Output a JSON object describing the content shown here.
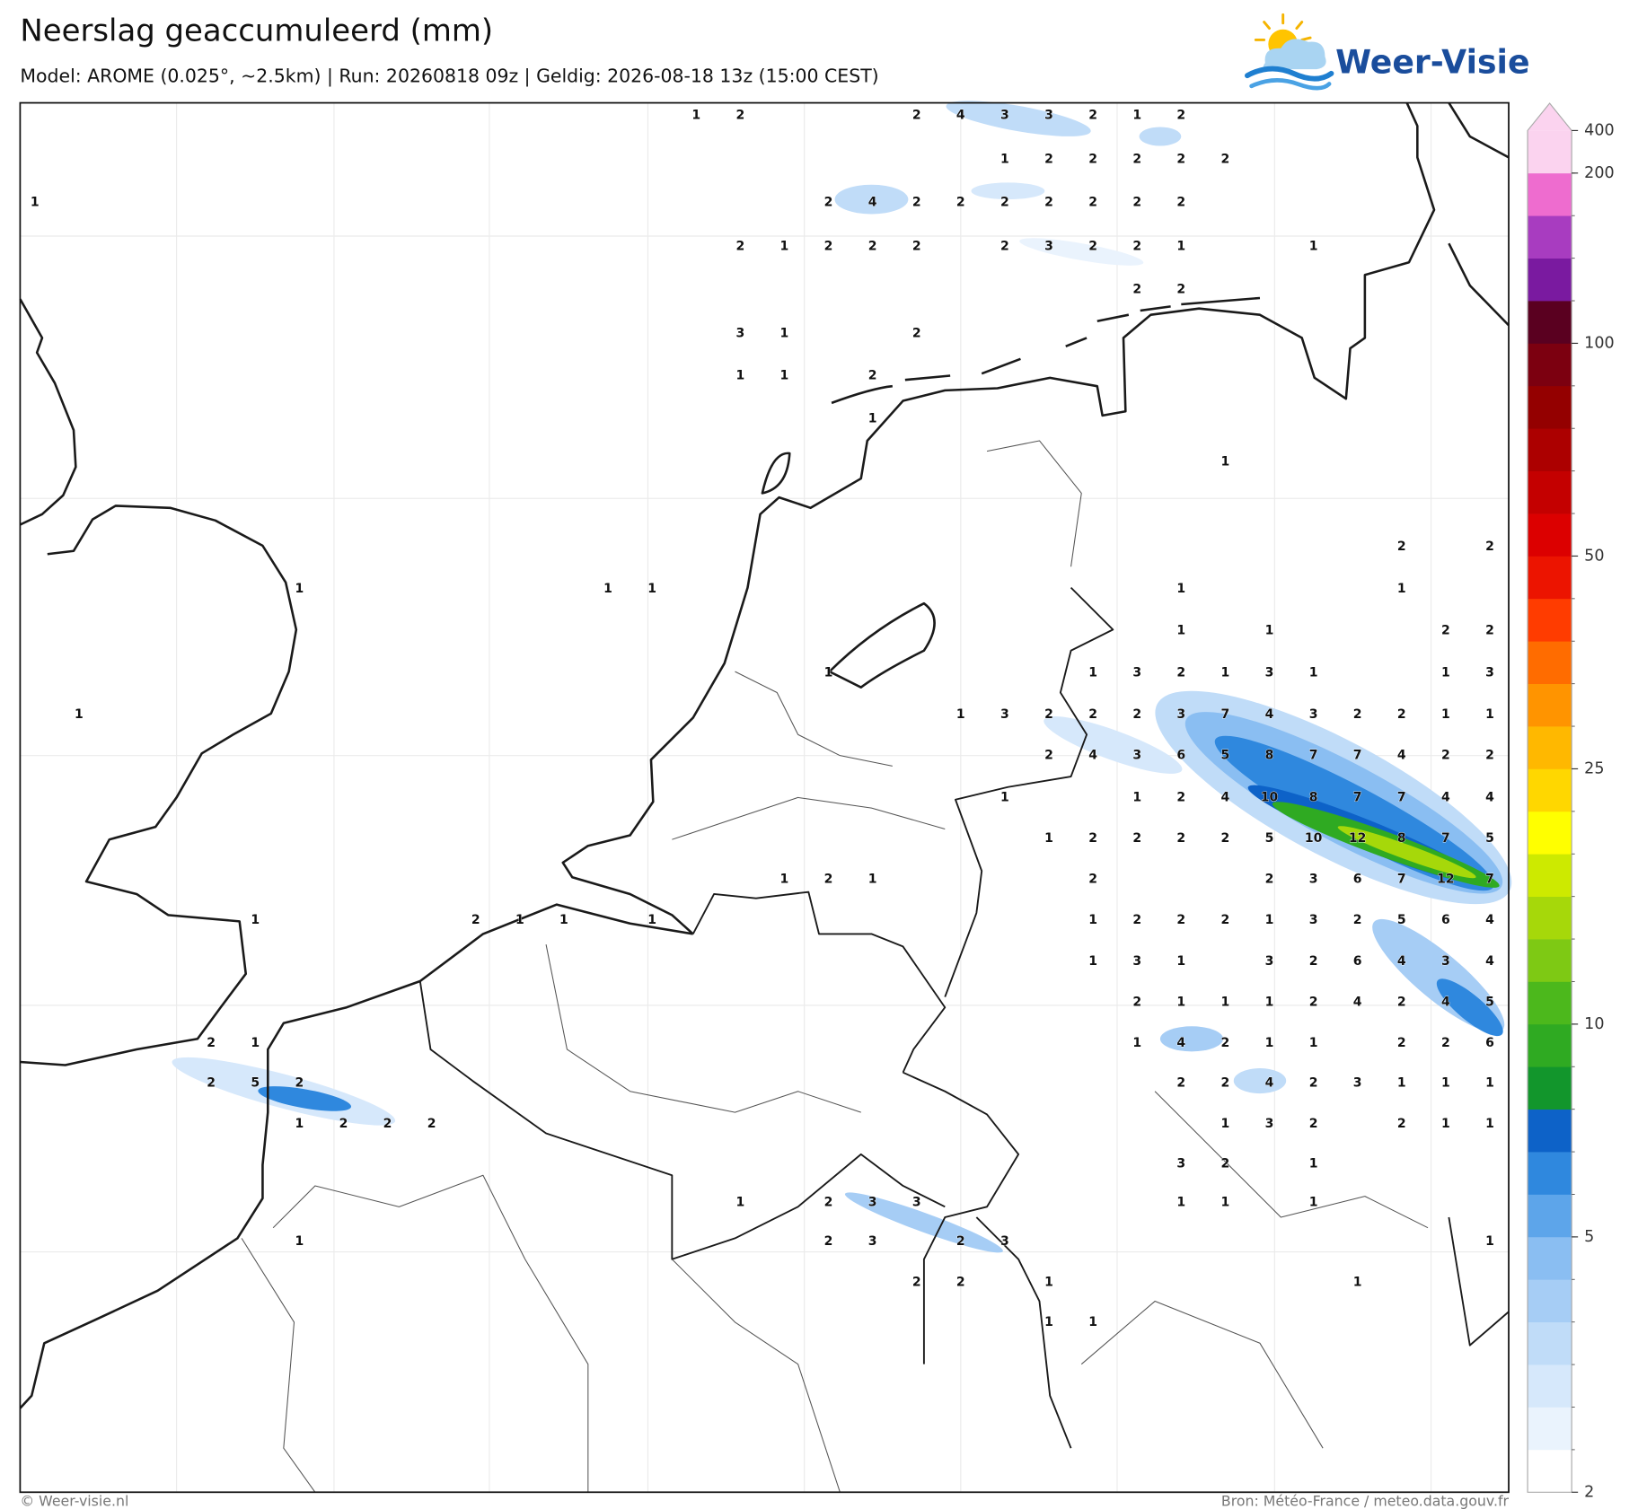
{
  "header": {
    "title": "Neerslag geaccumuleerd (mm)",
    "subtitle": "Model: AROME (0.025°, ~2.5km)  |  Run: 20260818 09z  |  Geldig: 2026-08-18 13z (15:00 CEST)"
  },
  "logo": {
    "text": "Weer-Visie"
  },
  "map": {
    "values": [
      [
        null,
        null,
        null,
        null,
        null,
        null,
        null,
        null,
        null,
        null,
        null,
        null,
        null,
        null,
        null,
        1,
        2,
        null,
        null,
        null,
        2,
        4,
        3,
        3,
        2,
        1,
        2,
        null,
        null,
        null,
        null,
        null,
        null,
        null
      ],
      [
        null,
        null,
        null,
        null,
        null,
        null,
        null,
        null,
        null,
        null,
        null,
        null,
        null,
        null,
        null,
        null,
        null,
        null,
        null,
        null,
        null,
        null,
        1,
        2,
        2,
        2,
        2,
        2,
        null,
        null,
        null,
        null,
        null,
        null
      ],
      [
        1,
        null,
        null,
        null,
        null,
        null,
        null,
        null,
        null,
        null,
        null,
        null,
        null,
        null,
        null,
        null,
        null,
        null,
        2,
        4,
        2,
        2,
        2,
        2,
        2,
        2,
        2,
        null,
        null,
        null,
        null,
        null,
        null,
        null
      ],
      [
        null,
        null,
        null,
        null,
        null,
        null,
        null,
        null,
        null,
        null,
        null,
        null,
        null,
        null,
        null,
        null,
        2,
        1,
        2,
        2,
        2,
        null,
        2,
        3,
        2,
        2,
        1,
        null,
        null,
        1,
        null,
        null,
        null,
        null
      ],
      [
        null,
        null,
        null,
        null,
        null,
        null,
        null,
        null,
        null,
        null,
        null,
        null,
        null,
        null,
        null,
        null,
        null,
        null,
        null,
        null,
        null,
        null,
        null,
        null,
        null,
        2,
        2,
        null,
        null,
        null,
        null,
        null,
        null,
        null
      ],
      [
        null,
        null,
        null,
        null,
        null,
        null,
        null,
        null,
        null,
        null,
        null,
        null,
        null,
        null,
        null,
        null,
        3,
        1,
        null,
        null,
        2,
        null,
        null,
        null,
        null,
        null,
        null,
        null,
        null,
        null,
        null,
        null,
        null,
        null
      ],
      [
        null,
        null,
        null,
        null,
        null,
        null,
        null,
        null,
        null,
        null,
        null,
        null,
        null,
        null,
        null,
        null,
        1,
        1,
        null,
        2,
        null,
        null,
        null,
        null,
        null,
        null,
        null,
        null,
        null,
        null,
        null,
        null,
        null,
        null
      ],
      [
        null,
        null,
        null,
        null,
        null,
        null,
        null,
        null,
        null,
        null,
        null,
        null,
        null,
        null,
        null,
        null,
        null,
        null,
        null,
        1,
        null,
        null,
        null,
        null,
        null,
        null,
        null,
        null,
        null,
        null,
        null,
        null,
        null,
        null
      ],
      [
        null,
        null,
        null,
        null,
        null,
        null,
        null,
        null,
        null,
        null,
        null,
        null,
        null,
        null,
        null,
        null,
        null,
        null,
        null,
        null,
        null,
        null,
        null,
        null,
        null,
        null,
        null,
        1,
        null,
        null,
        null,
        null,
        null,
        null
      ],
      [
        null,
        null,
        null,
        null,
        null,
        null,
        null,
        null,
        null,
        null,
        null,
        null,
        null,
        null,
        null,
        null,
        null,
        null,
        null,
        null,
        null,
        null,
        null,
        null,
        null,
        null,
        null,
        null,
        null,
        null,
        null,
        null,
        null,
        null
      ],
      [
        null,
        null,
        null,
        null,
        null,
        null,
        null,
        null,
        null,
        null,
        null,
        null,
        null,
        null,
        null,
        null,
        null,
        null,
        null,
        null,
        null,
        null,
        null,
        null,
        null,
        null,
        null,
        null,
        null,
        null,
        null,
        2,
        null,
        2
      ],
      [
        null,
        null,
        null,
        null,
        null,
        null,
        1,
        null,
        null,
        null,
        null,
        null,
        null,
        1,
        1,
        null,
        null,
        null,
        null,
        null,
        null,
        null,
        null,
        null,
        null,
        null,
        1,
        null,
        null,
        null,
        null,
        1,
        null,
        null
      ],
      [
        null,
        null,
        null,
        null,
        null,
        null,
        null,
        null,
        null,
        null,
        null,
        null,
        null,
        null,
        null,
        null,
        null,
        null,
        null,
        null,
        null,
        null,
        null,
        null,
        null,
        null,
        1,
        null,
        1,
        null,
        null,
        null,
        2,
        2
      ],
      [
        null,
        null,
        null,
        null,
        null,
        null,
        null,
        null,
        null,
        null,
        null,
        null,
        null,
        null,
        null,
        null,
        null,
        null,
        1,
        null,
        null,
        null,
        null,
        null,
        1,
        3,
        2,
        1,
        3,
        1,
        null,
        null,
        1,
        3
      ],
      [
        null,
        1,
        null,
        null,
        null,
        null,
        null,
        null,
        null,
        null,
        null,
        null,
        null,
        null,
        null,
        null,
        null,
        null,
        null,
        null,
        null,
        1,
        3,
        2,
        2,
        2,
        3,
        7,
        4,
        3,
        2,
        2,
        1,
        1
      ],
      [
        null,
        null,
        null,
        null,
        null,
        null,
        null,
        null,
        null,
        null,
        null,
        null,
        null,
        null,
        null,
        null,
        null,
        null,
        null,
        null,
        null,
        null,
        null,
        2,
        4,
        3,
        6,
        5,
        8,
        7,
        7,
        4,
        2,
        2
      ],
      [
        null,
        null,
        null,
        null,
        null,
        null,
        null,
        null,
        null,
        null,
        null,
        null,
        null,
        null,
        null,
        null,
        null,
        null,
        null,
        null,
        null,
        null,
        1,
        null,
        null,
        1,
        2,
        4,
        10,
        8,
        7,
        7,
        4,
        4
      ],
      [
        null,
        null,
        null,
        null,
        null,
        null,
        null,
        null,
        null,
        null,
        null,
        null,
        null,
        null,
        null,
        null,
        null,
        null,
        null,
        null,
        null,
        null,
        null,
        1,
        2,
        2,
        2,
        2,
        5,
        10,
        12,
        8,
        7,
        5
      ],
      [
        null,
        null,
        null,
        null,
        null,
        null,
        null,
        null,
        null,
        null,
        null,
        null,
        null,
        null,
        null,
        null,
        null,
        1,
        2,
        1,
        null,
        null,
        null,
        null,
        2,
        null,
        null,
        null,
        2,
        3,
        6,
        7,
        12,
        7
      ],
      [
        null,
        null,
        null,
        null,
        null,
        1,
        null,
        null,
        null,
        null,
        2,
        1,
        1,
        null,
        1,
        null,
        null,
        null,
        null,
        null,
        null,
        null,
        null,
        null,
        1,
        2,
        2,
        2,
        1,
        3,
        2,
        5,
        6,
        4
      ],
      [
        null,
        null,
        null,
        null,
        null,
        null,
        null,
        null,
        null,
        null,
        null,
        null,
        null,
        null,
        null,
        null,
        null,
        null,
        null,
        null,
        null,
        null,
        null,
        null,
        1,
        3,
        1,
        null,
        3,
        2,
        6,
        4,
        3,
        4
      ],
      [
        null,
        null,
        null,
        null,
        null,
        null,
        null,
        null,
        null,
        null,
        null,
        null,
        null,
        null,
        null,
        null,
        null,
        null,
        null,
        null,
        null,
        null,
        null,
        null,
        null,
        2,
        1,
        1,
        1,
        2,
        4,
        2,
        4,
        5
      ],
      [
        null,
        null,
        null,
        null,
        2,
        1,
        null,
        null,
        null,
        null,
        null,
        null,
        null,
        null,
        null,
        null,
        null,
        null,
        null,
        null,
        null,
        null,
        null,
        null,
        null,
        1,
        4,
        2,
        1,
        1,
        null,
        2,
        2,
        6
      ],
      [
        null,
        null,
        null,
        null,
        2,
        5,
        2,
        null,
        null,
        null,
        null,
        null,
        null,
        null,
        null,
        null,
        null,
        null,
        null,
        null,
        null,
        null,
        null,
        null,
        null,
        null,
        2,
        2,
        4,
        2,
        3,
        1,
        1,
        1
      ],
      [
        null,
        null,
        null,
        null,
        null,
        null,
        1,
        2,
        2,
        2,
        null,
        null,
        null,
        null,
        null,
        null,
        null,
        null,
        null,
        null,
        null,
        null,
        null,
        null,
        null,
        null,
        null,
        1,
        3,
        2,
        null,
        2,
        1,
        1
      ],
      [
        null,
        null,
        null,
        null,
        null,
        null,
        null,
        null,
        null,
        null,
        null,
        null,
        null,
        null,
        null,
        null,
        null,
        null,
        null,
        null,
        null,
        null,
        null,
        null,
        null,
        null,
        3,
        2,
        null,
        1,
        null,
        null,
        null,
        null
      ],
      [
        null,
        null,
        null,
        null,
        null,
        null,
        null,
        null,
        null,
        null,
        null,
        null,
        null,
        null,
        null,
        null,
        1,
        null,
        2,
        3,
        3,
        null,
        null,
        null,
        null,
        null,
        1,
        1,
        null,
        1,
        null,
        null,
        null,
        null
      ],
      [
        null,
        null,
        null,
        null,
        null,
        null,
        1,
        null,
        null,
        null,
        null,
        null,
        null,
        null,
        null,
        null,
        null,
        null,
        2,
        3,
        null,
        2,
        3,
        null,
        null,
        null,
        null,
        null,
        null,
        null,
        null,
        null,
        null,
        1
      ],
      [
        null,
        null,
        null,
        null,
        null,
        null,
        null,
        null,
        null,
        null,
        null,
        null,
        null,
        null,
        null,
        null,
        null,
        null,
        null,
        null,
        2,
        2,
        null,
        1,
        null,
        null,
        null,
        null,
        null,
        null,
        1,
        null,
        null,
        null
      ],
      [
        null,
        null,
        null,
        null,
        null,
        null,
        null,
        null,
        null,
        null,
        null,
        null,
        null,
        null,
        null,
        null,
        null,
        null,
        null,
        null,
        null,
        null,
        null,
        1,
        1,
        null,
        null,
        null,
        null,
        null,
        null,
        null,
        null,
        null
      ]
    ]
  },
  "colorbar": {
    "ticks": [
      400,
      200,
      100,
      50,
      25,
      10,
      5,
      2
    ],
    "colors": [
      "#ffffff",
      "#eaf3fd",
      "#d6e8fb",
      "#c0dcf8",
      "#a6cdf5",
      "#8abef2",
      "#5da5ea",
      "#2f88de",
      "#0d62c8",
      "#12962c",
      "#2faa22",
      "#4cb81c",
      "#7ec914",
      "#a6d80a",
      "#cdea00",
      "#ffff00",
      "#ffd700",
      "#ffb800",
      "#ff9400",
      "#ff6c00",
      "#ff3c00",
      "#ec1400",
      "#dc0000",
      "#c40000",
      "#ac0000",
      "#940000",
      "#7c0010",
      "#5a0020",
      "#7a1aa0",
      "#a83cc0",
      "#ee6ccf",
      "#fbd3ef"
    ]
  },
  "footer": {
    "left": "© Weer-visie.nl",
    "right": "Bron: Météo-France / meteo.data.gouv.fr"
  }
}
